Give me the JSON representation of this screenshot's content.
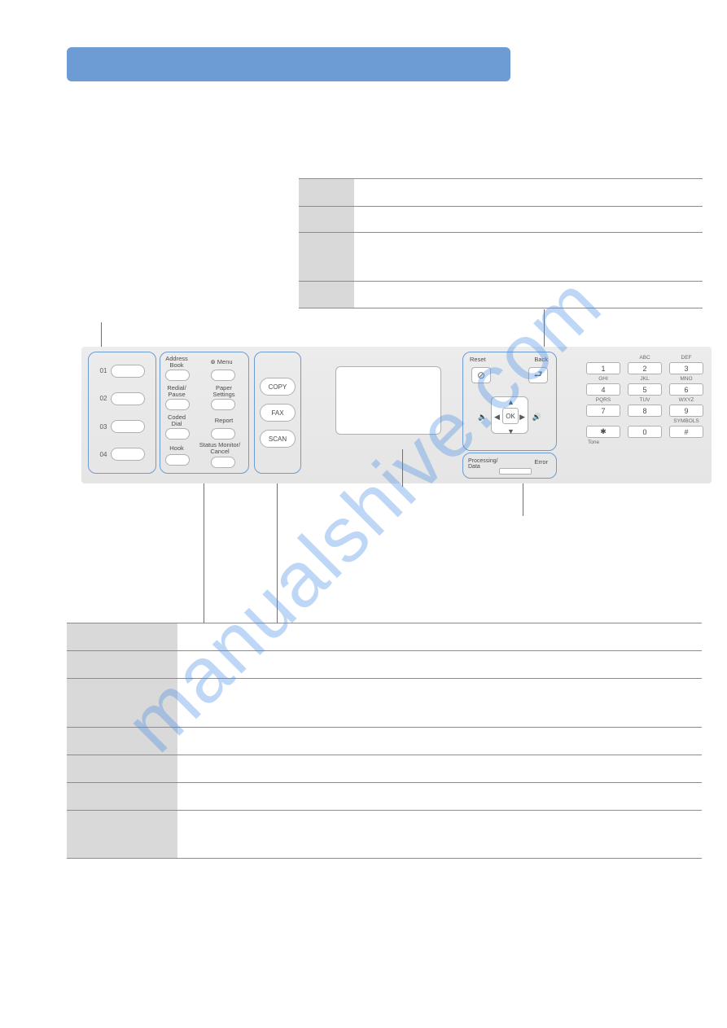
{
  "watermark": "manualshive.com",
  "panel": {
    "one_touch": [
      "01",
      "02",
      "03",
      "04"
    ],
    "labels": {
      "address_book": "Address\nBook",
      "redial_pause": "Redial/\nPause",
      "coded_dial": "Coded\nDial",
      "hook": "Hook",
      "menu": "Menu",
      "paper_settings": "Paper\nSettings",
      "report": "Report",
      "status_monitor": "Status Monitor/\nCancel"
    },
    "modes": [
      "COPY",
      "FAX",
      "SCAN"
    ],
    "nav": {
      "reset": "Reset",
      "back": "Back",
      "ok": "OK"
    },
    "status": {
      "proc": "Processing/\nData",
      "err": "Error"
    },
    "keypad": {
      "letters": [
        "",
        "ABC",
        "DEF",
        "GHI",
        "JKL",
        "MNO",
        "PQRS",
        "TUV",
        "WXYZ",
        "",
        "",
        "SYMBOLS"
      ],
      "keys": [
        "1",
        "2",
        "3",
        "4",
        "5",
        "6",
        "7",
        "8",
        "9",
        "✱",
        "0",
        "#"
      ],
      "tone": "Tone"
    }
  },
  "colors": {
    "header": "#6d9bd4",
    "group_border": "#6d9bd4",
    "panel_bg": "#e8e8e8",
    "row_label_bg": "#d9d9d9",
    "border": "#8c8c8c",
    "watermark": "rgba(70,140,230,0.35)"
  }
}
